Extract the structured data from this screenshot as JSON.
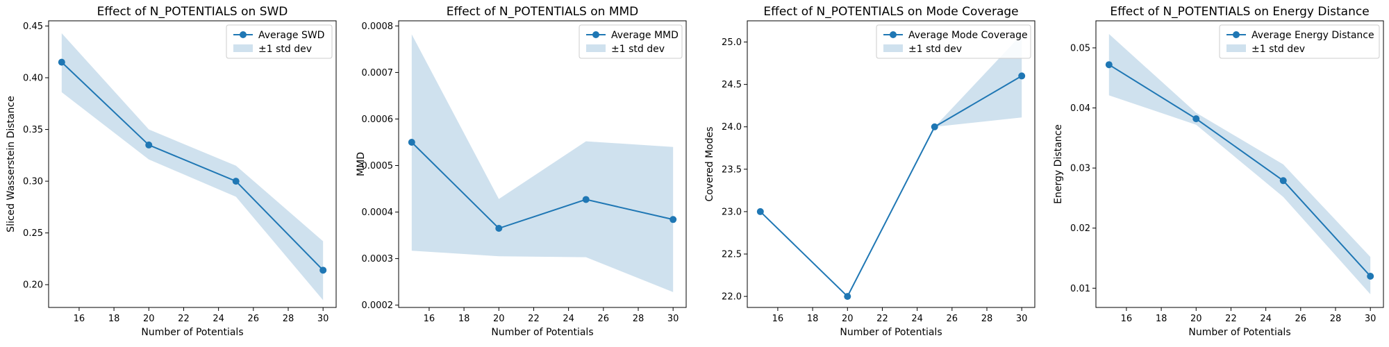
{
  "chart_data": [
    {
      "type": "line",
      "title": "Effect of N_POTENTIALS on SWD",
      "xlabel": "Number of Potentials",
      "ylabel": "Sliced Wasserstein Distance",
      "x": [
        15,
        20,
        25,
        30
      ],
      "series": [
        {
          "name": "Average SWD",
          "values": [
            0.415,
            0.335,
            0.3,
            0.214
          ]
        }
      ],
      "band": {
        "name": "±1 std dev",
        "lower": [
          0.386,
          0.321,
          0.285,
          0.185
        ],
        "upper": [
          0.443,
          0.35,
          0.315,
          0.242
        ]
      },
      "xlim": [
        14.25,
        30.75
      ],
      "ylim": [
        0.178,
        0.455
      ],
      "xticks": [
        16,
        18,
        20,
        22,
        24,
        26,
        28,
        30
      ],
      "yticks": [
        0.2,
        0.25,
        0.3,
        0.35,
        0.4,
        0.45
      ],
      "ytick_decimals": 2,
      "grid": false,
      "legend": "top-right",
      "color": "#1f77b4",
      "band_color": "#cfe1ee"
    },
    {
      "type": "line",
      "title": "Effect of N_POTENTIALS on MMD",
      "xlabel": "Number of Potentials",
      "ylabel": "MMD",
      "x": [
        15,
        20,
        25,
        30
      ],
      "series": [
        {
          "name": "Average MMD",
          "values": [
            0.00055,
            0.000365,
            0.000427,
            0.000384
          ]
        }
      ],
      "band": {
        "name": "±1 std dev",
        "lower": [
          0.000317,
          0.000305,
          0.000303,
          0.000228
        ],
        "upper": [
          0.000782,
          0.000428,
          0.000552,
          0.00054
        ]
      },
      "xlim": [
        14.25,
        30.75
      ],
      "ylim": [
        0.000195,
        0.000811
      ],
      "xticks": [
        16,
        18,
        20,
        22,
        24,
        26,
        28,
        30
      ],
      "yticks": [
        0.0002,
        0.0003,
        0.0004,
        0.0005,
        0.0006,
        0.0007,
        0.0008
      ],
      "ytick_decimals": 4,
      "grid": false,
      "legend": "top-right",
      "color": "#1f77b4",
      "band_color": "#cfe1ee"
    },
    {
      "type": "line",
      "title": "Effect of N_POTENTIALS on Mode Coverage",
      "xlabel": "Number of Potentials",
      "ylabel": "Covered Modes",
      "x": [
        15,
        20,
        25,
        30
      ],
      "series": [
        {
          "name": "Average Mode Coverage",
          "values": [
            23.0,
            22.0,
            24.0,
            24.6
          ]
        }
      ],
      "band": {
        "name": "±1 std dev",
        "lower": [
          23.0,
          22.0,
          24.0,
          24.11
        ],
        "upper": [
          23.0,
          22.0,
          24.0,
          25.09
        ]
      },
      "xlim": [
        14.25,
        30.75
      ],
      "ylim": [
        21.87,
        25.25
      ],
      "xticks": [
        16,
        18,
        20,
        22,
        24,
        26,
        28,
        30
      ],
      "yticks": [
        22.0,
        22.5,
        23.0,
        23.5,
        24.0,
        24.5,
        25.0
      ],
      "ytick_decimals": 1,
      "grid": false,
      "legend": "top-right",
      "color": "#1f77b4",
      "band_color": "#cfe1ee"
    },
    {
      "type": "line",
      "title": "Effect of N_POTENTIALS on Energy Distance",
      "xlabel": "Number of Potentials",
      "ylabel": "Energy Distance",
      "x": [
        15,
        20,
        25,
        30
      ],
      "series": [
        {
          "name": "Average Energy Distance",
          "values": [
            0.0472,
            0.0382,
            0.0279,
            0.012
          ]
        }
      ],
      "band": {
        "name": "±1 std dev",
        "lower": [
          0.0421,
          0.0372,
          0.0252,
          0.009
        ],
        "upper": [
          0.0523,
          0.0392,
          0.0306,
          0.0152
        ]
      },
      "xlim": [
        14.25,
        30.75
      ],
      "ylim": [
        0.0068,
        0.0545
      ],
      "xticks": [
        16,
        18,
        20,
        22,
        24,
        26,
        28,
        30
      ],
      "yticks": [
        0.01,
        0.02,
        0.03,
        0.04,
        0.05
      ],
      "ytick_decimals": 2,
      "grid": false,
      "legend": "top-right",
      "color": "#1f77b4",
      "band_color": "#cfe1ee"
    }
  ]
}
